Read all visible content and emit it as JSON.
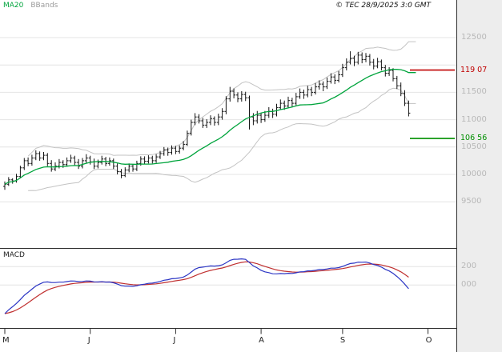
{
  "header": {
    "copyright": "© TEC 28/9/2025 3:0 GMT"
  },
  "legend": {
    "ma20": "MA20",
    "bbands": "BBands"
  },
  "chart_data": {
    "type": "candlestick",
    "x_axis": {
      "month_ticks": [
        {
          "label": "M",
          "bar": 0
        },
        {
          "label": "J",
          "bar": 22
        },
        {
          "label": "J",
          "bar": 44
        },
        {
          "label": "A",
          "bar": 66
        },
        {
          "label": "S",
          "bar": 87
        },
        {
          "label": "O",
          "bar": 109
        }
      ]
    },
    "y_axis": {
      "gridlines": [
        12500,
        12000,
        11500,
        11000,
        10500,
        10000,
        9500
      ],
      "labels": [
        {
          "text": "12500",
          "price": 12500
        },
        {
          "text": "11500",
          "price": 11500
        },
        {
          "text": "11000",
          "price": 11000
        },
        {
          "text": "10500",
          "price": 10500
        },
        {
          "text": "10000",
          "price": 10000
        },
        {
          "text": "9500",
          "price": 9500
        }
      ]
    },
    "levels": [
      {
        "name": "resistance",
        "label": "119 07",
        "value": 11907,
        "color": "#c00000"
      },
      {
        "name": "support",
        "label": "106 56",
        "value": 10656,
        "color": "#008f00"
      }
    ],
    "overlays": {
      "ma20": {
        "period": 20,
        "color": "#00a43c"
      },
      "bbands": {
        "period": 20,
        "mult": 2,
        "color": "#c3c3c3"
      }
    },
    "macd": {
      "label": "MACD",
      "fast": 12,
      "slow": 26,
      "signal": 9,
      "seed_fast": 9650,
      "seed_slow": 10000,
      "range": [
        -450,
        350
      ],
      "line_color": "#2b35c4",
      "signal_color": "#c03030",
      "axis_labels": [
        {
          "text": "200",
          "value": 200
        },
        {
          "text": "000",
          "value": 0
        }
      ]
    },
    "bars": [
      [
        9780,
        9870,
        9720,
        9820
      ],
      [
        9820,
        9950,
        9790,
        9900
      ],
      [
        9900,
        9930,
        9830,
        9880
      ],
      [
        9880,
        10010,
        9850,
        9960
      ],
      [
        9960,
        10160,
        9930,
        10120
      ],
      [
        10120,
        10300,
        10080,
        10250
      ],
      [
        10250,
        10310,
        10150,
        10200
      ],
      [
        10200,
        10360,
        10160,
        10300
      ],
      [
        10300,
        10440,
        10260,
        10380
      ],
      [
        10380,
        10420,
        10250,
        10300
      ],
      [
        10300,
        10410,
        10260,
        10350
      ],
      [
        10350,
        10390,
        10150,
        10200
      ],
      [
        10200,
        10260,
        10050,
        10100
      ],
      [
        10100,
        10220,
        10060,
        10150
      ],
      [
        10150,
        10280,
        10110,
        10220
      ],
      [
        10220,
        10260,
        10120,
        10180
      ],
      [
        10180,
        10310,
        10140,
        10250
      ],
      [
        10250,
        10360,
        10210,
        10300
      ],
      [
        10300,
        10340,
        10170,
        10220
      ],
      [
        10220,
        10280,
        10100,
        10150
      ],
      [
        10150,
        10300,
        10110,
        10250
      ],
      [
        10250,
        10370,
        10210,
        10300
      ],
      [
        10300,
        10340,
        10180,
        10230
      ],
      [
        10230,
        10290,
        10100,
        10150
      ],
      [
        10150,
        10270,
        10110,
        10220
      ],
      [
        10220,
        10340,
        10180,
        10280
      ],
      [
        10280,
        10320,
        10150,
        10200
      ],
      [
        10200,
        10310,
        10160,
        10250
      ],
      [
        10250,
        10290,
        10100,
        10150
      ],
      [
        10150,
        10200,
        10000,
        10050
      ],
      [
        10050,
        10100,
        9930,
        9980
      ],
      [
        9980,
        10130,
        9950,
        10080
      ],
      [
        10080,
        10200,
        10040,
        10150
      ],
      [
        10150,
        10190,
        10050,
        10100
      ],
      [
        10100,
        10250,
        10060,
        10200
      ],
      [
        10200,
        10330,
        10160,
        10280
      ],
      [
        10280,
        10330,
        10190,
        10240
      ],
      [
        10240,
        10350,
        10200,
        10300
      ],
      [
        10300,
        10340,
        10200,
        10250
      ],
      [
        10250,
        10370,
        10210,
        10320
      ],
      [
        10320,
        10430,
        10280,
        10380
      ],
      [
        10380,
        10500,
        10340,
        10450
      ],
      [
        10450,
        10490,
        10340,
        10400
      ],
      [
        10400,
        10530,
        10360,
        10480
      ],
      [
        10480,
        10520,
        10370,
        10420
      ],
      [
        10420,
        10530,
        10380,
        10480
      ],
      [
        10480,
        10610,
        10440,
        10550
      ],
      [
        10550,
        10800,
        10520,
        10750
      ],
      [
        10750,
        11000,
        10710,
        10950
      ],
      [
        10950,
        11120,
        10900,
        11050
      ],
      [
        11050,
        11100,
        10930,
        10980
      ],
      [
        10980,
        11030,
        10850,
        10900
      ],
      [
        10900,
        11010,
        10850,
        10950
      ],
      [
        10950,
        11080,
        10900,
        11020
      ],
      [
        11020,
        11060,
        10890,
        10950
      ],
      [
        10950,
        11110,
        10900,
        11050
      ],
      [
        11050,
        11210,
        11000,
        11150
      ],
      [
        11150,
        11430,
        11100,
        11380
      ],
      [
        11380,
        11600,
        11330,
        11520
      ],
      [
        11520,
        11570,
        11390,
        11450
      ],
      [
        11450,
        11500,
        11320,
        11380
      ],
      [
        11380,
        11520,
        11330,
        11460
      ],
      [
        11460,
        11510,
        11340,
        11400
      ],
      [
        11400,
        11440,
        10820,
        11050
      ],
      [
        11050,
        11120,
        10900,
        10980
      ],
      [
        10980,
        11160,
        10930,
        11080
      ],
      [
        11080,
        11120,
        10940,
        11000
      ],
      [
        11000,
        11160,
        10960,
        11080
      ],
      [
        11080,
        11230,
        11030,
        11150
      ],
      [
        11150,
        11200,
        11030,
        11100
      ],
      [
        11100,
        11290,
        11060,
        11220
      ],
      [
        11220,
        11370,
        11180,
        11300
      ],
      [
        11300,
        11350,
        11180,
        11250
      ],
      [
        11250,
        11420,
        11210,
        11350
      ],
      [
        11350,
        11400,
        11230,
        11300
      ],
      [
        11300,
        11490,
        11260,
        11420
      ],
      [
        11420,
        11570,
        11380,
        11500
      ],
      [
        11500,
        11550,
        11380,
        11450
      ],
      [
        11450,
        11620,
        11410,
        11550
      ],
      [
        11550,
        11600,
        11430,
        11500
      ],
      [
        11500,
        11670,
        11460,
        11600
      ],
      [
        11600,
        11720,
        11550,
        11650
      ],
      [
        11650,
        11700,
        11520,
        11600
      ],
      [
        11600,
        11770,
        11560,
        11700
      ],
      [
        11700,
        11850,
        11660,
        11780
      ],
      [
        11780,
        11830,
        11650,
        11720
      ],
      [
        11720,
        11890,
        11680,
        11820
      ],
      [
        11820,
        12020,
        11780,
        11950
      ],
      [
        11950,
        12120,
        11900,
        12050
      ],
      [
        12050,
        12250,
        12010,
        12120
      ],
      [
        12120,
        12170,
        11980,
        12050
      ],
      [
        12050,
        12240,
        12010,
        12180
      ],
      [
        12180,
        12230,
        12030,
        12100
      ],
      [
        12100,
        12220,
        12050,
        12160
      ],
      [
        12160,
        12200,
        11990,
        12050
      ],
      [
        12050,
        12110,
        11920,
        11980
      ],
      [
        11980,
        12130,
        11940,
        12060
      ],
      [
        12060,
        12100,
        11900,
        11950
      ],
      [
        11950,
        12000,
        11790,
        11850
      ],
      [
        11850,
        11960,
        11800,
        11900
      ],
      [
        11900,
        11940,
        11700,
        11750
      ],
      [
        11750,
        11800,
        11560,
        11620
      ],
      [
        11620,
        11680,
        11430,
        11480
      ],
      [
        11480,
        11540,
        11250,
        11300
      ],
      [
        11300,
        11350,
        11060,
        11120
      ]
    ]
  }
}
